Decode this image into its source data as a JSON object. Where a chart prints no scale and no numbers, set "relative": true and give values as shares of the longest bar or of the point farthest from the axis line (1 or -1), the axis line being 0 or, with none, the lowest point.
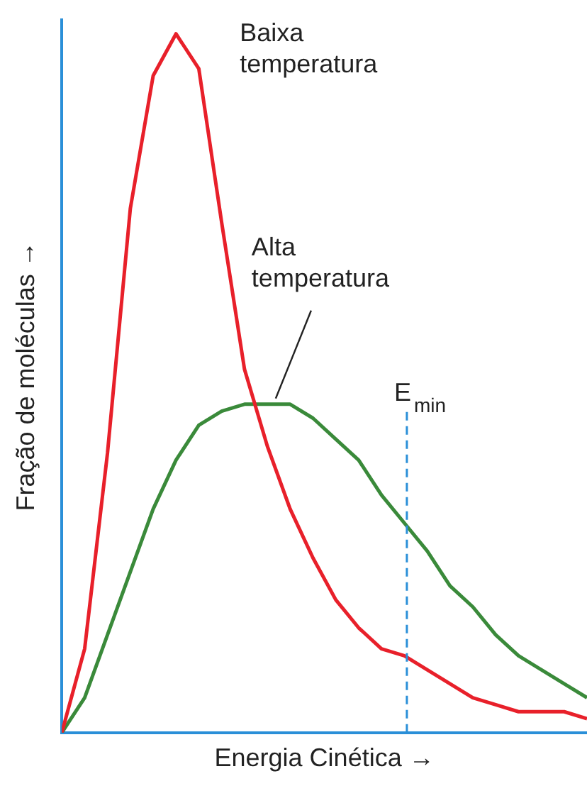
{
  "chart_data": {
    "type": "line",
    "relative": true,
    "xlabel": "Energia Cinética →",
    "ylabel": "Fração de moléculas →",
    "categories": [
      null,
      null,
      null,
      null,
      null,
      null,
      null,
      null,
      null,
      null,
      null,
      null,
      null,
      null,
      null,
      null,
      null,
      null,
      null,
      null,
      null,
      null,
      null,
      null
    ],
    "grid": false,
    "legend": false,
    "marker": "none",
    "line_style": "solid",
    "series": [
      {
        "name": "Baixa temperatura",
        "color": "#e8202a",
        "values": [
          0,
          0.12,
          0.4,
          0.75,
          0.94,
          1,
          0.95,
          0.73,
          0.52,
          0.41,
          0.32,
          0.25,
          0.19,
          0.15,
          0.12,
          0.11,
          0.09,
          0.07,
          0.05,
          0.04,
          0.03,
          0.03,
          0.03,
          0.02
        ]
      },
      {
        "name": "Alta temperatura",
        "color": "#3a8a3a",
        "values": [
          0,
          0.05,
          0.14,
          0.23,
          0.32,
          0.39,
          0.44,
          0.46,
          0.47,
          0.47,
          0.47,
          0.45,
          0.42,
          0.39,
          0.34,
          0.3,
          0.26,
          0.21,
          0.18,
          0.14,
          0.11,
          0.09,
          0.07,
          0.05
        ]
      }
    ],
    "annotations": [
      "E$_{min}$"
    ]
  }
}
